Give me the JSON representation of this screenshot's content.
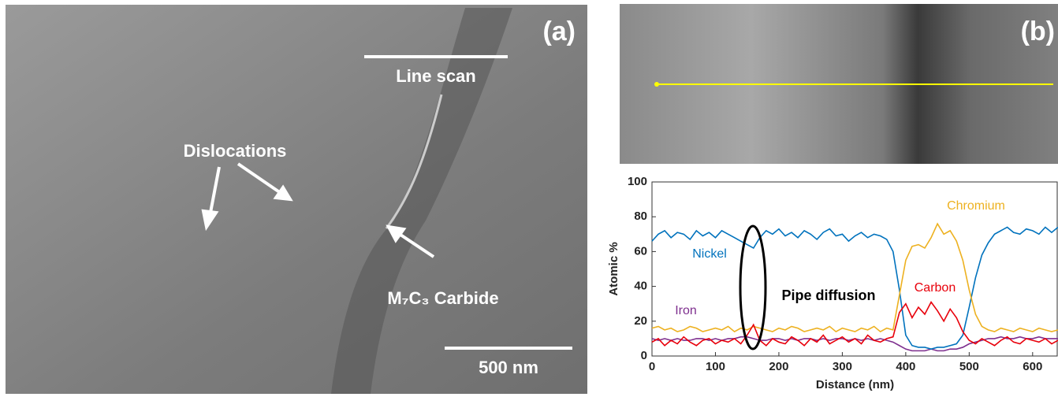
{
  "figure": {
    "panel_a": {
      "label": "(a)",
      "line_scan": "Line scan",
      "dislocations": "Dislocations",
      "carbide": "M₇C₃ Carbide",
      "scale_bar": "500 nm"
    },
    "panel_b": {
      "label": "(b)"
    }
  },
  "chart_data": {
    "type": "line",
    "x_label": "Distance (nm)",
    "y_label": "Atomic %",
    "annotations": [
      "Pipe diffusion"
    ],
    "xlim": [
      0,
      640
    ],
    "xticks": [
      0,
      100,
      200,
      300,
      400,
      500,
      600
    ],
    "ylim": [
      0,
      100
    ],
    "yticks": [
      0,
      20,
      40,
      60,
      80,
      100
    ],
    "x": [
      0,
      10,
      20,
      30,
      40,
      50,
      60,
      70,
      80,
      90,
      100,
      110,
      120,
      130,
      140,
      150,
      160,
      170,
      180,
      190,
      200,
      210,
      220,
      230,
      240,
      250,
      260,
      270,
      280,
      290,
      300,
      310,
      320,
      330,
      340,
      350,
      360,
      370,
      380,
      390,
      400,
      410,
      420,
      430,
      440,
      450,
      460,
      470,
      480,
      490,
      500,
      510,
      520,
      530,
      540,
      550,
      560,
      570,
      580,
      590,
      600,
      610,
      620,
      630,
      640
    ],
    "series": [
      {
        "name": "Nickel",
        "color": "#0072bd",
        "values": [
          66,
          70,
          72,
          68,
          71,
          70,
          67,
          72,
          69,
          71,
          68,
          72,
          70,
          68,
          66,
          64,
          62,
          68,
          72,
          70,
          73,
          69,
          71,
          68,
          72,
          70,
          67,
          71,
          73,
          69,
          70,
          66,
          69,
          71,
          68,
          70,
          69,
          67,
          60,
          38,
          12,
          6,
          5,
          5,
          4,
          5,
          5,
          6,
          7,
          12,
          28,
          45,
          58,
          65,
          70,
          72,
          74,
          71,
          70,
          73,
          72,
          70,
          74,
          71,
          74
        ]
      },
      {
        "name": "Chromium",
        "color": "#edb120",
        "values": [
          16,
          17,
          15,
          16,
          14,
          15,
          17,
          16,
          14,
          15,
          16,
          15,
          17,
          14,
          16,
          15,
          17,
          16,
          15,
          14,
          16,
          15,
          17,
          16,
          14,
          15,
          16,
          15,
          17,
          14,
          16,
          15,
          14,
          16,
          15,
          17,
          14,
          16,
          15,
          35,
          55,
          63,
          64,
          62,
          68,
          76,
          70,
          72,
          66,
          55,
          38,
          24,
          17,
          15,
          14,
          16,
          15,
          14,
          16,
          15,
          14,
          16,
          15,
          14,
          15
        ]
      },
      {
        "name": "Carbon",
        "color": "#e8000b",
        "values": [
          8,
          10,
          6,
          9,
          7,
          11,
          8,
          6,
          9,
          10,
          7,
          9,
          8,
          10,
          7,
          12,
          18,
          9,
          6,
          10,
          8,
          7,
          11,
          9,
          6,
          10,
          8,
          12,
          7,
          9,
          11,
          8,
          10,
          7,
          12,
          9,
          8,
          10,
          11,
          25,
          30,
          22,
          28,
          24,
          31,
          26,
          20,
          27,
          22,
          14,
          9,
          7,
          10,
          8,
          6,
          9,
          11,
          8,
          7,
          10,
          9,
          8,
          10,
          7,
          9
        ]
      },
      {
        "name": "Iron",
        "color": "#7e2f8e",
        "values": [
          10,
          9,
          10,
          9,
          10,
          9,
          9,
          10,
          10,
          9,
          10,
          9,
          10,
          10,
          11,
          11,
          10,
          9,
          9,
          10,
          10,
          9,
          10,
          9,
          10,
          10,
          9,
          10,
          9,
          10,
          10,
          9,
          10,
          9,
          10,
          9,
          10,
          9,
          8,
          6,
          4,
          3,
          3,
          3,
          4,
          3,
          3,
          4,
          4,
          5,
          7,
          8,
          9,
          10,
          10,
          11,
          10,
          10,
          11,
          10,
          10,
          11,
          10,
          10,
          10
        ]
      }
    ]
  }
}
